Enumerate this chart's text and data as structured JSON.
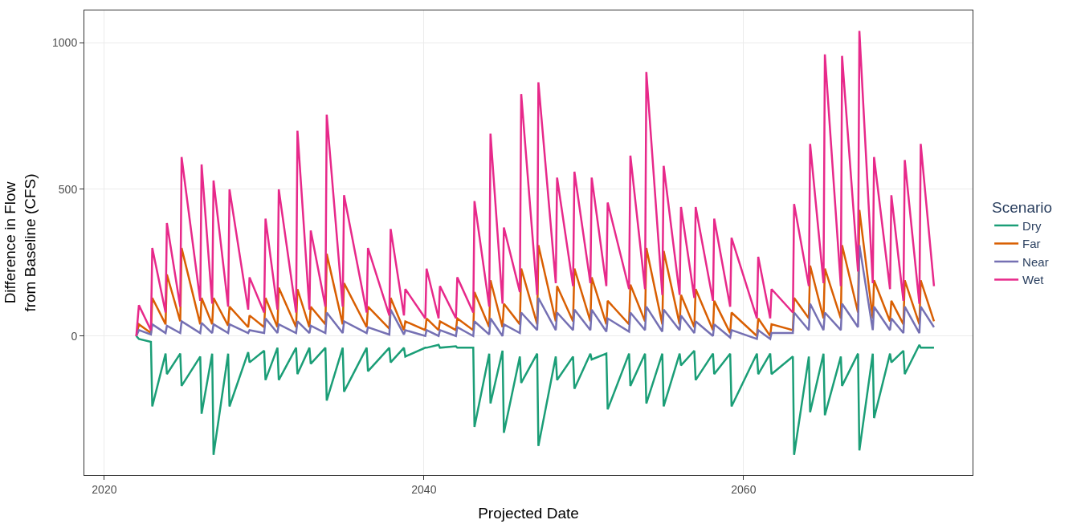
{
  "chart_data": {
    "type": "line",
    "xlabel": "Projected Date",
    "ylabel": "Difference in Flow\nfrom Baseline (CFS)",
    "legend_title": "Scenario",
    "legend": "right",
    "grid": true,
    "xlim": [
      "2018-10",
      "2074-05"
    ],
    "xticks": [
      {
        "value": "2020-01-01",
        "label": "2020"
      },
      {
        "value": "2040-01-01",
        "label": "2040"
      },
      {
        "value": "2060-01-01",
        "label": "2060"
      }
    ],
    "ylim": [
      -474,
      1110
    ],
    "yticks": [
      0,
      500,
      1000
    ],
    "x": [
      "2022-01",
      "2022-03",
      "2022-12",
      "2023-01",
      "2023-11",
      "2023-12",
      "2024-10",
      "2024-11",
      "2026-01",
      "2026-02",
      "2026-10",
      "2026-11",
      "2027-10",
      "2027-11",
      "2029-01",
      "2029-02",
      "2030-01",
      "2030-02",
      "2030-11",
      "2030-12",
      "2032-01",
      "2032-02",
      "2032-11",
      "2032-12",
      "2033-11",
      "2033-12",
      "2034-12",
      "2035-01",
      "2036-06",
      "2036-07",
      "2037-11",
      "2037-12",
      "2038-10",
      "2038-11",
      "2040-02",
      "2040-03",
      "2040-12",
      "2041-01",
      "2042-01",
      "2042-02",
      "2043-02",
      "2043-03",
      "2044-02",
      "2044-03",
      "2044-12",
      "2045-01",
      "2046-01",
      "2046-02",
      "2047-02",
      "2047-03",
      "2048-04",
      "2048-05",
      "2049-05",
      "2049-06",
      "2050-06",
      "2050-07",
      "2051-06",
      "2051-07",
      "2052-11",
      "2052-12",
      "2053-11",
      "2053-12",
      "2054-12",
      "2055-01",
      "2056-01",
      "2056-02",
      "2056-12",
      "2057-01",
      "2058-02",
      "2058-03",
      "2059-03",
      "2059-04",
      "2060-11",
      "2060-12",
      "2061-09",
      "2061-10",
      "2063-02",
      "2063-03",
      "2064-02",
      "2064-03",
      "2065-01",
      "2065-02",
      "2066-02",
      "2066-03",
      "2067-03",
      "2067-04",
      "2068-02",
      "2068-03",
      "2069-03",
      "2069-04",
      "2070-01",
      "2070-02",
      "2071-01",
      "2071-02",
      "2071-12"
    ],
    "series": [
      {
        "name": "Dry",
        "color": "#1b9e77",
        "values": [
          0,
          -10,
          -20,
          -240,
          -60,
          -130,
          -60,
          -170,
          -70,
          -265,
          -60,
          -405,
          -60,
          -240,
          -55,
          -90,
          -50,
          -150,
          -40,
          -150,
          -40,
          -130,
          -40,
          -95,
          -40,
          -220,
          -40,
          -190,
          -40,
          -120,
          -40,
          -90,
          -40,
          -70,
          -40,
          -40,
          -30,
          -40,
          -35,
          -40,
          -40,
          -310,
          -60,
          -230,
          -50,
          -330,
          -70,
          -160,
          -60,
          -375,
          -70,
          -150,
          -70,
          -180,
          -60,
          -80,
          -60,
          -250,
          -60,
          -170,
          -60,
          -230,
          -60,
          -240,
          -60,
          -100,
          -50,
          -150,
          -60,
          -130,
          -60,
          -240,
          -60,
          -130,
          -60,
          -130,
          -70,
          -405,
          -70,
          -260,
          -60,
          -270,
          -70,
          -170,
          -60,
          -390,
          -60,
          -280,
          -60,
          -90,
          -50,
          -130,
          -30,
          -40,
          -40
        ]
      },
      {
        "name": "Far",
        "color": "#d95f02",
        "values": [
          0,
          40,
          10,
          130,
          40,
          210,
          50,
          300,
          40,
          130,
          40,
          130,
          35,
          100,
          30,
          70,
          30,
          130,
          30,
          165,
          30,
          160,
          30,
          100,
          40,
          280,
          40,
          180,
          30,
          100,
          25,
          130,
          20,
          50,
          20,
          60,
          20,
          50,
          20,
          60,
          20,
          150,
          30,
          190,
          30,
          110,
          40,
          230,
          40,
          310,
          50,
          170,
          50,
          230,
          50,
          200,
          40,
          120,
          40,
          175,
          50,
          300,
          40,
          290,
          40,
          140,
          30,
          160,
          20,
          120,
          10,
          80,
          0,
          60,
          0,
          40,
          20,
          130,
          60,
          240,
          60,
          230,
          60,
          310,
          80,
          430,
          60,
          190,
          50,
          120,
          40,
          190,
          40,
          190,
          50
        ]
      },
      {
        "name": "Near",
        "color": "#7570b3",
        "values": [
          0,
          20,
          5,
          40,
          10,
          35,
          10,
          50,
          10,
          45,
          10,
          40,
          10,
          40,
          10,
          20,
          10,
          60,
          10,
          40,
          10,
          50,
          10,
          35,
          10,
          80,
          10,
          50,
          10,
          30,
          5,
          90,
          5,
          20,
          0,
          20,
          0,
          20,
          0,
          30,
          0,
          50,
          5,
          60,
          0,
          40,
          10,
          80,
          20,
          130,
          20,
          80,
          20,
          90,
          20,
          90,
          15,
          60,
          15,
          80,
          20,
          100,
          15,
          90,
          20,
          70,
          10,
          50,
          0,
          40,
          -5,
          20,
          -10,
          20,
          -10,
          10,
          10,
          80,
          20,
          110,
          20,
          80,
          20,
          110,
          30,
          310,
          20,
          100,
          20,
          60,
          10,
          100,
          10,
          100,
          30
        ]
      },
      {
        "name": "Wet",
        "color": "#e7298a",
        "values": [
          0,
          105,
          20,
          300,
          80,
          385,
          100,
          610,
          120,
          585,
          110,
          530,
          100,
          500,
          90,
          200,
          80,
          400,
          90,
          500,
          80,
          700,
          90,
          360,
          100,
          755,
          100,
          480,
          80,
          300,
          70,
          365,
          70,
          160,
          60,
          230,
          60,
          170,
          60,
          200,
          80,
          460,
          100,
          690,
          110,
          370,
          150,
          825,
          140,
          865,
          180,
          540,
          170,
          560,
          180,
          540,
          170,
          455,
          160,
          615,
          160,
          900,
          140,
          580,
          140,
          440,
          130,
          440,
          120,
          400,
          100,
          335,
          60,
          270,
          60,
          160,
          80,
          450,
          170,
          655,
          180,
          960,
          170,
          955,
          220,
          1040,
          180,
          610,
          160,
          480,
          120,
          600,
          110,
          655,
          170
        ]
      }
    ]
  }
}
